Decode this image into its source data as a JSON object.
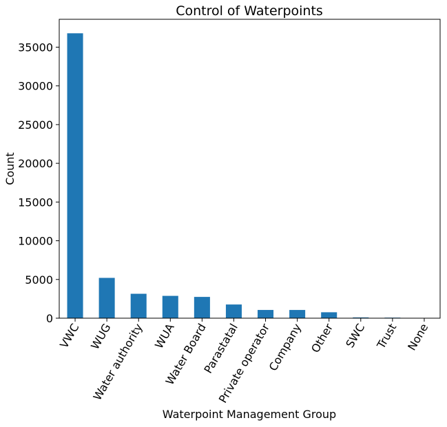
{
  "chart_data": {
    "type": "bar",
    "title": "Control of Waterpoints",
    "xlabel": "Waterpoint Management Group",
    "ylabel": "Count",
    "categories": [
      "VWC",
      "WUG",
      "Water authority",
      "WUA",
      "Water Board",
      "Parastatal",
      "Private operator",
      "Company",
      "Other",
      "SWC",
      "Trust",
      "None"
    ],
    "values": [
      36793,
      5206,
      3153,
      2883,
      2748,
      1768,
      1063,
      1061,
      766,
      97,
      72,
      1
    ],
    "ylim": [
      0,
      38600
    ],
    "yticks": [
      0,
      5000,
      10000,
      15000,
      20000,
      25000,
      30000,
      35000
    ],
    "ytick_labels": [
      "0",
      "5000",
      "10000",
      "15000",
      "20000",
      "25000",
      "30000",
      "35000"
    ],
    "grid": false,
    "legend": "none",
    "bar_color": "#1f77b4"
  }
}
